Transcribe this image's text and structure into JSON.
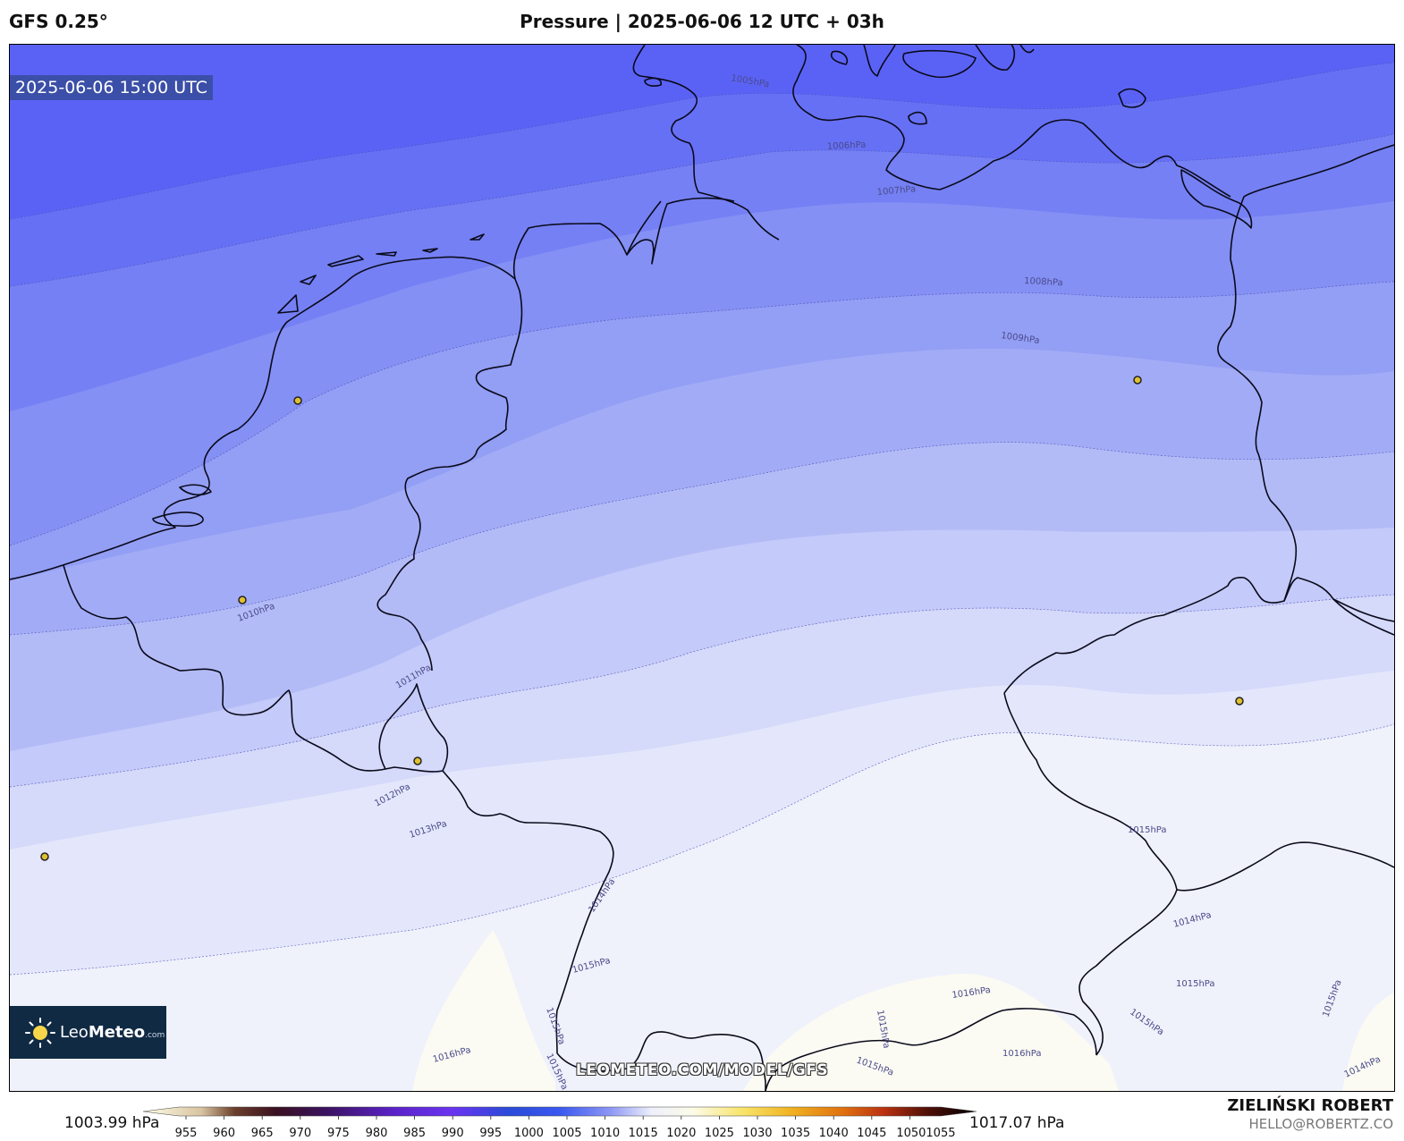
{
  "header": {
    "model": "GFS 0.25°",
    "title": "Pressure | 2025-06-06 12 UTC + 03h"
  },
  "map": {
    "valid_time": "2025-06-06 15:00 UTC",
    "watermark": "LEOMETEO.COM/MODEL/GFS",
    "logo": {
      "name_light": "Leo",
      "name_bold": "Meteo",
      "suffix": ".com"
    },
    "isobar_labels": [
      {
        "text": "1005hPa"
      },
      {
        "text": "1006hPa"
      },
      {
        "text": "1007hPa"
      },
      {
        "text": "1008hPa"
      },
      {
        "text": "1009hPa"
      },
      {
        "text": "1010hPa"
      },
      {
        "text": "1011hPa"
      },
      {
        "text": "1012hPa"
      },
      {
        "text": "1013hPa"
      },
      {
        "text": "1014hPa"
      },
      {
        "text": "1015hPa"
      },
      {
        "text": "1015hPa"
      },
      {
        "text": "1015hPa"
      },
      {
        "text": "1014hPa"
      },
      {
        "text": "1015hPa"
      },
      {
        "text": "1015hPa"
      },
      {
        "text": "1015hPa"
      },
      {
        "text": "1016hPa"
      },
      {
        "text": "1016hPa"
      },
      {
        "text": "1016hPa"
      },
      {
        "text": "1015hPa"
      },
      {
        "text": "1015hPa"
      },
      {
        "text": "1014hPa"
      },
      {
        "text": "1015hPa"
      }
    ],
    "colors": {
      "band_1005": "#5a62f6",
      "band_1006": "#6670f5",
      "band_1007": "#7580f4",
      "band_1008": "#8490f4",
      "band_1009": "#939ef5",
      "band_1010": "#a2acf6",
      "band_1011": "#b3bbf7",
      "band_1012": "#c4caf9",
      "band_1013": "#d5d9fa",
      "band_1014": "#e4e7fb",
      "band_1015": "#eff1fb",
      "band_1016": "#fbfbf3",
      "city_marker": "#e0c030"
    }
  },
  "colorbar": {
    "min_label": "1003.99 hPa",
    "max_label": "1017.07 hPa",
    "ticks": [
      "955",
      "960",
      "965",
      "970",
      "975",
      "980",
      "985",
      "990",
      "995",
      "1000",
      "1005",
      "1010",
      "1015",
      "1020",
      "1025",
      "1030",
      "1035",
      "1040",
      "1045",
      "10501055"
    ]
  },
  "credits": {
    "author": "ZIELIŃSKI ROBERT",
    "email": "HELLO@ROBERTZ.CO"
  }
}
